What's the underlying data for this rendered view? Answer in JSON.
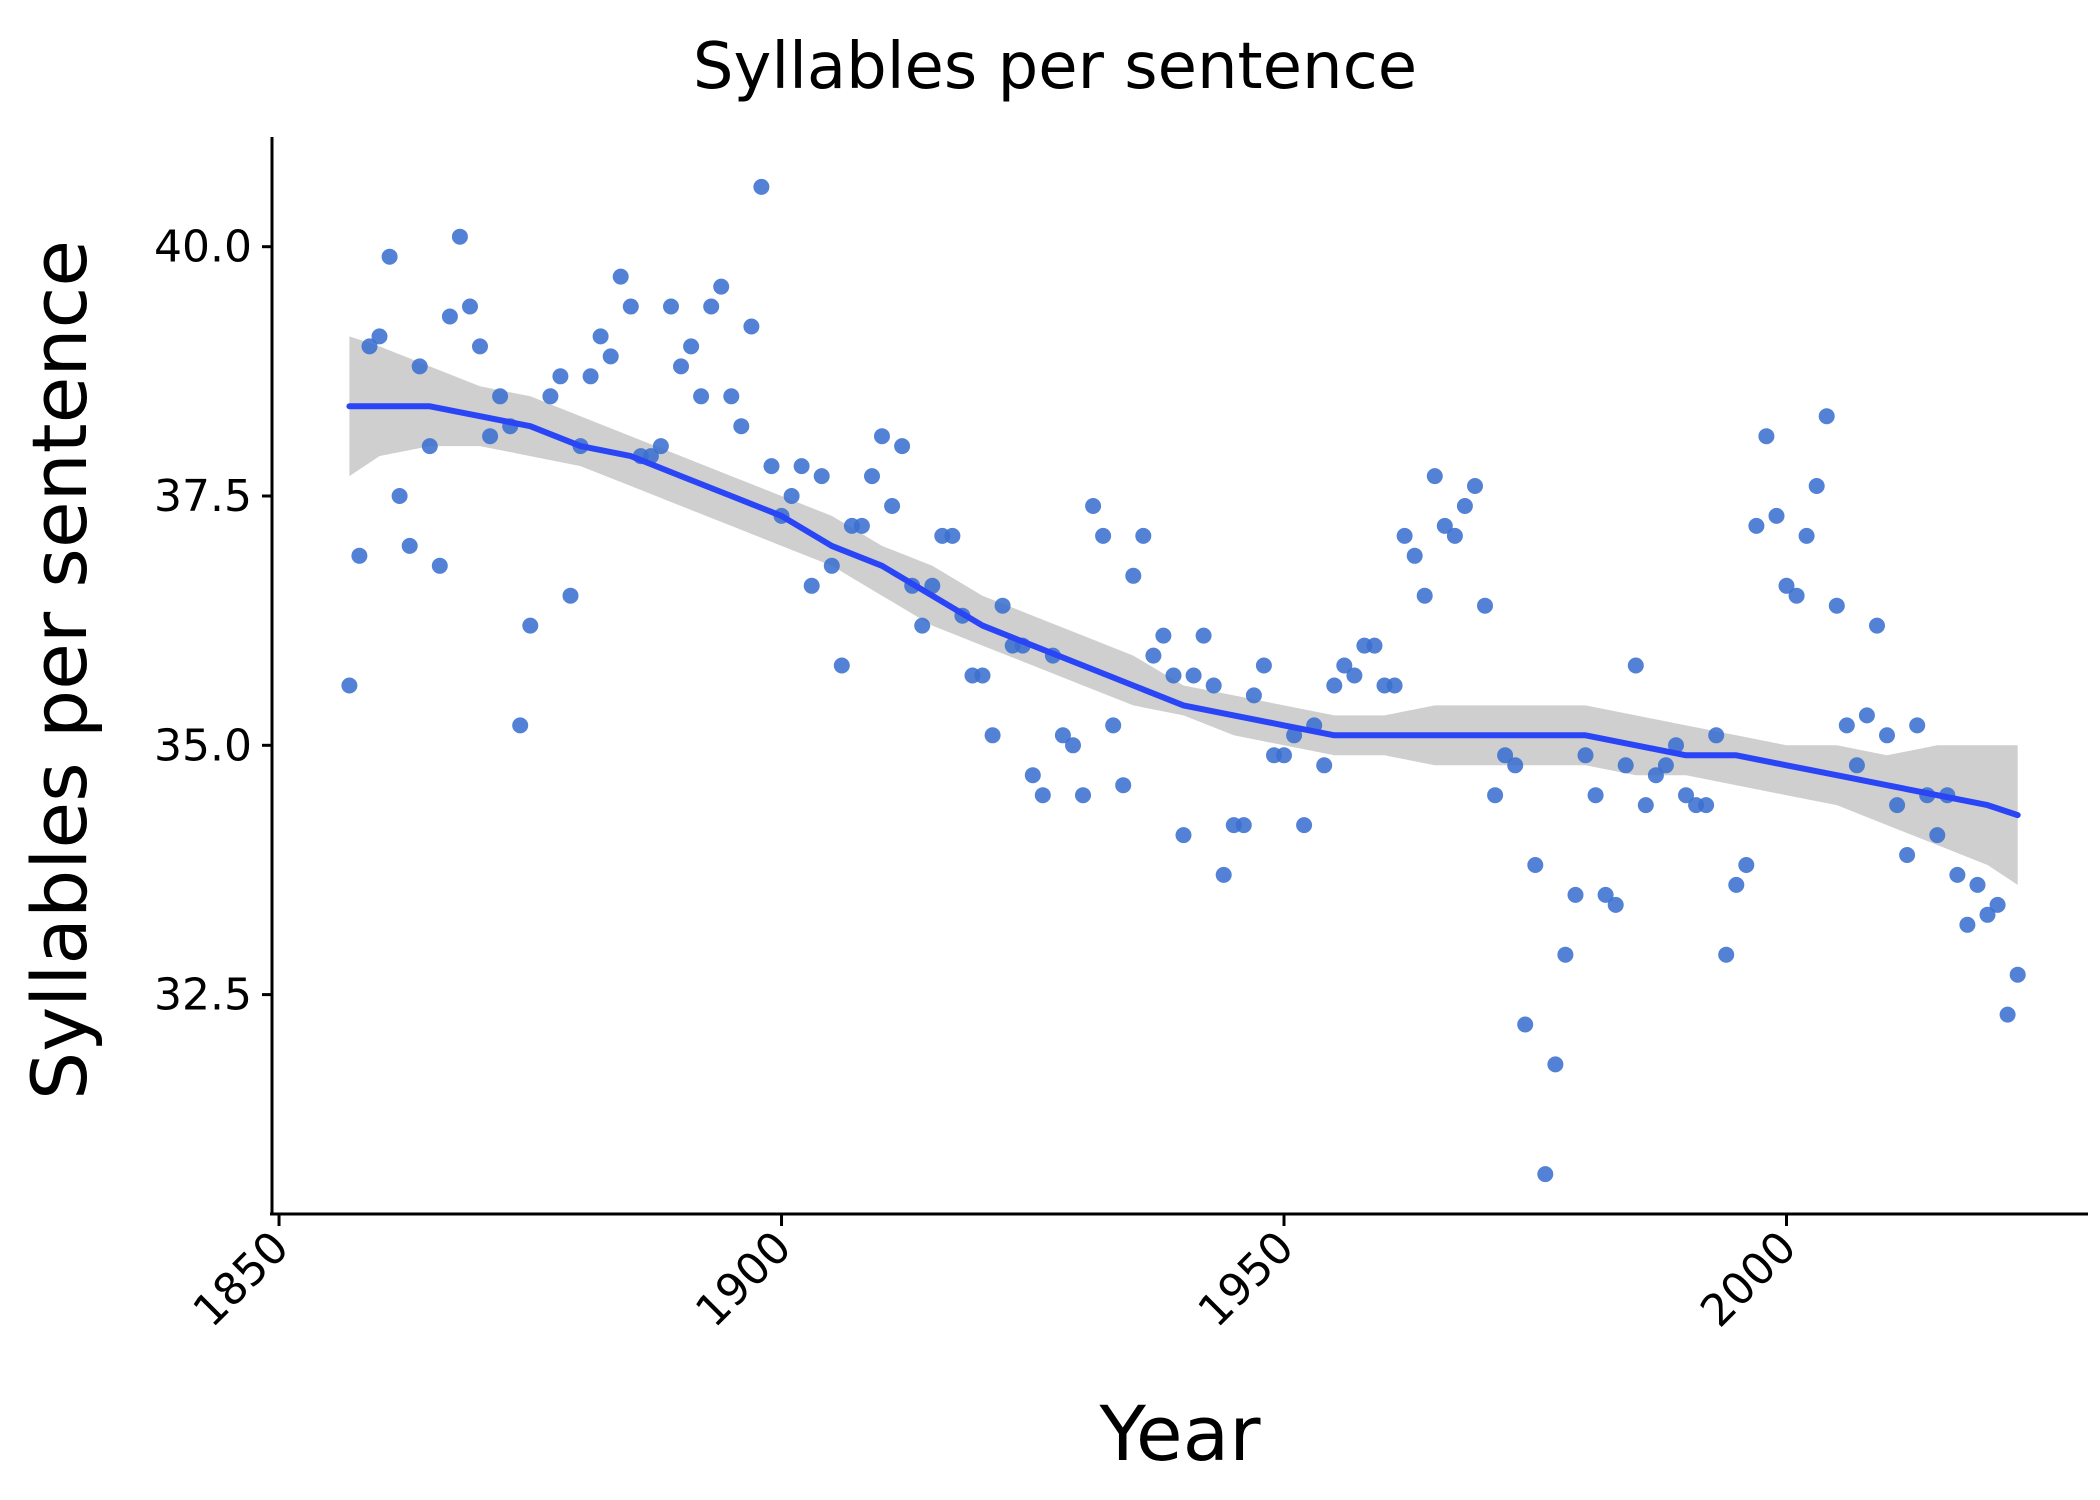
{
  "chart_data": {
    "type": "scatter",
    "title": "Syllables per sentence",
    "xlabel": "Year",
    "ylabel": "Syllables per sentence",
    "xlim": [
      1849.3,
      2030
    ],
    "ylim": [
      30.3,
      41.1
    ],
    "x_ticks": [
      1850,
      1900,
      1950,
      2000
    ],
    "y_ticks": [
      32.5,
      35.0,
      37.5,
      40.0
    ],
    "x_tick_labels": [
      "1850",
      "1900",
      "1950",
      "2000"
    ],
    "y_tick_labels": [
      "32.5",
      "35.0",
      "37.5",
      "40.0"
    ],
    "grid": false,
    "legend": "none",
    "colors": {
      "points": "#3a6fd0",
      "smooth": "#2a45f5",
      "band": "#cccccc"
    },
    "series": [
      {
        "type": "scatter",
        "points": [
          [
            1857,
            35.6
          ],
          [
            1858,
            36.9
          ],
          [
            1859,
            39.0
          ],
          [
            1860,
            39.1
          ],
          [
            1861,
            39.9
          ],
          [
            1862,
            37.5
          ],
          [
            1863,
            37.0
          ],
          [
            1864,
            38.8
          ],
          [
            1865,
            38.0
          ],
          [
            1866,
            36.8
          ],
          [
            1867,
            39.3
          ],
          [
            1868,
            40.1
          ],
          [
            1869,
            39.4
          ],
          [
            1870,
            39.0
          ],
          [
            1871,
            38.1
          ],
          [
            1872,
            38.5
          ],
          [
            1873,
            38.2
          ],
          [
            1874,
            35.2
          ],
          [
            1875,
            36.2
          ],
          [
            1877,
            38.5
          ],
          [
            1878,
            38.7
          ],
          [
            1879,
            36.5
          ],
          [
            1880,
            38.0
          ],
          [
            1881,
            38.7
          ],
          [
            1882,
            39.1
          ],
          [
            1883,
            38.9
          ],
          [
            1884,
            39.7
          ],
          [
            1885,
            39.4
          ],
          [
            1886,
            37.9
          ],
          [
            1887,
            37.9
          ],
          [
            1888,
            38.0
          ],
          [
            1889,
            39.4
          ],
          [
            1890,
            38.8
          ],
          [
            1891,
            39.0
          ],
          [
            1892,
            38.5
          ],
          [
            1893,
            39.4
          ],
          [
            1894,
            39.6
          ],
          [
            1895,
            38.5
          ],
          [
            1896,
            38.2
          ],
          [
            1897,
            39.2
          ],
          [
            1898,
            40.6
          ],
          [
            1899,
            37.8
          ],
          [
            1900,
            37.3
          ],
          [
            1901,
            37.5
          ],
          [
            1902,
            37.8
          ],
          [
            1903,
            36.6
          ],
          [
            1904,
            37.7
          ],
          [
            1905,
            36.8
          ],
          [
            1906,
            35.8
          ],
          [
            1907,
            37.2
          ],
          [
            1908,
            37.2
          ],
          [
            1909,
            37.7
          ],
          [
            1910,
            38.1
          ],
          [
            1911,
            37.4
          ],
          [
            1912,
            38.0
          ],
          [
            1913,
            36.6
          ],
          [
            1914,
            36.2
          ],
          [
            1915,
            36.6
          ],
          [
            1916,
            37.1
          ],
          [
            1917,
            37.1
          ],
          [
            1918,
            36.3
          ],
          [
            1919,
            35.7
          ],
          [
            1920,
            35.7
          ],
          [
            1921,
            35.1
          ],
          [
            1922,
            36.4
          ],
          [
            1923,
            36.0
          ],
          [
            1924,
            36.0
          ],
          [
            1925,
            34.7
          ],
          [
            1926,
            34.5
          ],
          [
            1927,
            35.9
          ],
          [
            1928,
            35.1
          ],
          [
            1929,
            35.0
          ],
          [
            1930,
            34.5
          ],
          [
            1931,
            37.4
          ],
          [
            1932,
            37.1
          ],
          [
            1933,
            35.2
          ],
          [
            1934,
            34.6
          ],
          [
            1935,
            36.7
          ],
          [
            1936,
            37.1
          ],
          [
            1937,
            35.9
          ],
          [
            1938,
            36.1
          ],
          [
            1939,
            35.7
          ],
          [
            1940,
            34.1
          ],
          [
            1941,
            35.7
          ],
          [
            1942,
            36.1
          ],
          [
            1943,
            35.6
          ],
          [
            1944,
            33.7
          ],
          [
            1945,
            34.2
          ],
          [
            1946,
            34.2
          ],
          [
            1947,
            35.5
          ],
          [
            1948,
            35.8
          ],
          [
            1949,
            34.9
          ],
          [
            1950,
            34.9
          ],
          [
            1951,
            35.1
          ],
          [
            1952,
            34.2
          ],
          [
            1953,
            35.2
          ],
          [
            1954,
            34.8
          ],
          [
            1955,
            35.6
          ],
          [
            1956,
            35.8
          ],
          [
            1957,
            35.7
          ],
          [
            1958,
            36.0
          ],
          [
            1959,
            36.0
          ],
          [
            1960,
            35.6
          ],
          [
            1961,
            35.6
          ],
          [
            1962,
            37.1
          ],
          [
            1963,
            36.9
          ],
          [
            1964,
            36.5
          ],
          [
            1965,
            37.7
          ],
          [
            1966,
            37.2
          ],
          [
            1967,
            37.1
          ],
          [
            1968,
            37.4
          ],
          [
            1969,
            37.6
          ],
          [
            1970,
            36.4
          ],
          [
            1971,
            34.5
          ],
          [
            1972,
            34.9
          ],
          [
            1973,
            34.8
          ],
          [
            1974,
            32.2
          ],
          [
            1975,
            33.8
          ],
          [
            1976,
            30.7
          ],
          [
            1977,
            31.8
          ],
          [
            1978,
            32.9
          ],
          [
            1979,
            33.5
          ],
          [
            1980,
            34.9
          ],
          [
            1981,
            34.5
          ],
          [
            1982,
            33.5
          ],
          [
            1983,
            33.4
          ],
          [
            1984,
            34.8
          ],
          [
            1985,
            35.8
          ],
          [
            1986,
            34.4
          ],
          [
            1987,
            34.7
          ],
          [
            1988,
            34.8
          ],
          [
            1989,
            35.0
          ],
          [
            1990,
            34.5
          ],
          [
            1991,
            34.4
          ],
          [
            1992,
            34.4
          ],
          [
            1993,
            35.1
          ],
          [
            1994,
            32.9
          ],
          [
            1995,
            33.6
          ],
          [
            1996,
            33.8
          ],
          [
            1997,
            37.2
          ],
          [
            1998,
            38.1
          ],
          [
            1999,
            37.3
          ],
          [
            2000,
            36.6
          ],
          [
            2001,
            36.5
          ],
          [
            2002,
            37.1
          ],
          [
            2003,
            37.6
          ],
          [
            2004,
            38.3
          ],
          [
            2005,
            36.4
          ],
          [
            2006,
            35.2
          ],
          [
            2007,
            34.8
          ],
          [
            2008,
            35.3
          ],
          [
            2009,
            36.2
          ],
          [
            2010,
            35.1
          ],
          [
            2011,
            34.4
          ],
          [
            2012,
            33.9
          ],
          [
            2013,
            35.2
          ],
          [
            2014,
            34.5
          ],
          [
            2015,
            34.1
          ],
          [
            2016,
            34.5
          ],
          [
            2017,
            33.7
          ],
          [
            2018,
            33.2
          ],
          [
            2019,
            33.6
          ],
          [
            2020,
            33.3
          ],
          [
            2021,
            33.4
          ],
          [
            2022,
            32.3
          ],
          [
            2023,
            32.7
          ]
        ]
      },
      {
        "type": "smooth",
        "x": [
          1857,
          1860,
          1865,
          1870,
          1875,
          1880,
          1885,
          1890,
          1895,
          1900,
          1905,
          1910,
          1915,
          1920,
          1925,
          1930,
          1935,
          1940,
          1945,
          1950,
          1955,
          1960,
          1965,
          1970,
          1975,
          1980,
          1985,
          1990,
          1995,
          2000,
          2005,
          2010,
          2015,
          2020,
          2023
        ],
        "y": [
          38.4,
          38.4,
          38.4,
          38.3,
          38.2,
          38.0,
          37.9,
          37.7,
          37.5,
          37.3,
          37.0,
          36.8,
          36.5,
          36.2,
          36.0,
          35.8,
          35.6,
          35.4,
          35.3,
          35.2,
          35.1,
          35.1,
          35.1,
          35.1,
          35.1,
          35.1,
          35.0,
          34.9,
          34.9,
          34.8,
          34.7,
          34.6,
          34.5,
          34.4,
          34.3
        ],
        "lower": [
          37.7,
          37.9,
          38.0,
          38.0,
          37.9,
          37.8,
          37.6,
          37.4,
          37.2,
          37.0,
          36.8,
          36.5,
          36.2,
          36.0,
          35.8,
          35.6,
          35.4,
          35.3,
          35.1,
          35.0,
          34.9,
          34.9,
          34.8,
          34.8,
          34.8,
          34.8,
          34.7,
          34.7,
          34.6,
          34.5,
          34.4,
          34.2,
          34.0,
          33.8,
          33.6
        ],
        "upper": [
          39.1,
          39.0,
          38.8,
          38.6,
          38.5,
          38.3,
          38.1,
          37.9,
          37.7,
          37.5,
          37.3,
          37.0,
          36.8,
          36.5,
          36.3,
          36.1,
          35.9,
          35.6,
          35.5,
          35.4,
          35.3,
          35.3,
          35.4,
          35.4,
          35.4,
          35.4,
          35.3,
          35.2,
          35.1,
          35.0,
          35.0,
          34.9,
          35.0,
          35.0,
          35.0
        ]
      }
    ]
  }
}
